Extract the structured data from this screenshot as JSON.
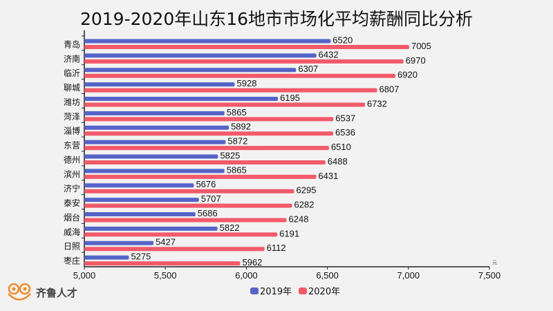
{
  "chart_data": {
    "type": "bar",
    "orientation": "horizontal",
    "title": "2019-2020年山东16地市市场化平均薪酬同比分析",
    "categories": [
      "青岛",
      "济南",
      "临沂",
      "聊城",
      "潍坊",
      "菏泽",
      "淄博",
      "东营",
      "德州",
      "滨州",
      "济宁",
      "泰安",
      "烟台",
      "威海",
      "日照",
      "枣庄"
    ],
    "series": [
      {
        "name": "2019年",
        "color": "#5563c8",
        "values": [
          6520,
          6432,
          6307,
          5928,
          6195,
          5865,
          5892,
          5872,
          5825,
          5865,
          5676,
          5707,
          5686,
          5822,
          5427,
          5275
        ]
      },
      {
        "name": "2020年",
        "color": "#f25a6a",
        "values": [
          7005,
          6970,
          6920,
          6807,
          6732,
          6537,
          6536,
          6510,
          6488,
          6431,
          6295,
          6282,
          6248,
          6191,
          6112,
          5962
        ]
      }
    ],
    "xlim": [
      5000,
      7500
    ],
    "xticks": [
      "5,000",
      "5,500",
      "6,000",
      "6,500",
      "7,000",
      "7,500"
    ],
    "xticks_values": [
      5000,
      5500,
      6000,
      6500,
      7000,
      7500
    ],
    "xunit": "元",
    "legend": "bottom-center"
  },
  "logo": {
    "text": "齐鲁人才"
  }
}
